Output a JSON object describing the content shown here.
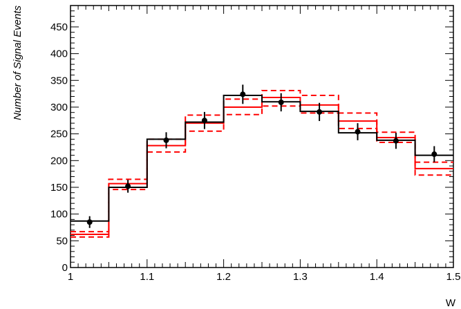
{
  "chart_data": {
    "type": "histogram",
    "title": "",
    "xlabel": "W",
    "ylabel": "Number of Signal Events",
    "xlim": [
      1.0,
      1.5
    ],
    "ylim": [
      0,
      490
    ],
    "x_ticks": [
      "1",
      "1.1",
      "1.2",
      "1.3",
      "1.4",
      "1.5"
    ],
    "y_ticks": [
      "0",
      "50",
      "100",
      "150",
      "200",
      "250",
      "300",
      "350",
      "400",
      "450"
    ],
    "grid": false,
    "legend": "none",
    "bin_edges": [
      1.0,
      1.05,
      1.1,
      1.15,
      1.2,
      1.25,
      1.3,
      1.35,
      1.4,
      1.45,
      1.5
    ],
    "series": [
      {
        "kind": "points-with-errors-and-step",
        "color": "#000000",
        "x": [
          1.025,
          1.075,
          1.125,
          1.175,
          1.225,
          1.275,
          1.325,
          1.375,
          1.425,
          1.475
        ],
        "values": [
          85,
          152,
          238,
          275,
          324,
          309,
          291,
          254,
          237,
          212
        ],
        "errors": [
          11,
          12,
          15,
          16,
          18,
          17,
          17,
          16,
          15,
          15
        ],
        "step_values": [
          87,
          150,
          240,
          272,
          322,
          310,
          292,
          252,
          238,
          210
        ]
      },
      {
        "kind": "step",
        "color": "#ff0000",
        "line": "solid",
        "values": [
          62,
          157,
          228,
          270,
          300,
          318,
          304,
          274,
          243,
          185
        ]
      },
      {
        "kind": "step",
        "color": "#ff0000",
        "line": "dashed",
        "values": [
          67,
          165,
          240,
          285,
          315,
          331,
          322,
          289,
          253,
          197
        ]
      },
      {
        "kind": "step",
        "color": "#ff0000",
        "line": "dashed",
        "values": [
          57,
          146,
          216,
          255,
          286,
          302,
          289,
          260,
          234,
          173
        ]
      }
    ]
  }
}
